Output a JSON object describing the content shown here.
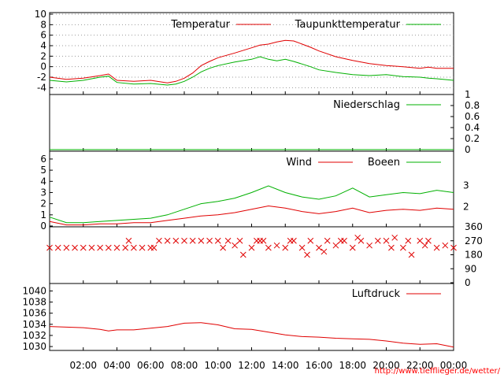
{
  "credit": "http://www.tiefflieger.de/wetter/",
  "x_ticks": [
    "02:00",
    "04:00",
    "06:00",
    "08:00",
    "10:00",
    "12:00",
    "14:00",
    "16:00",
    "18:00",
    "20:00",
    "22:00",
    "00:00"
  ],
  "chart_data": [
    {
      "id": "temperature",
      "type": "line",
      "x_unit": "hours since 00:00",
      "y_ticks": [
        10,
        8,
        6,
        4,
        2,
        0,
        -2,
        -4
      ],
      "y_range": [
        -5,
        10
      ],
      "grid": true,
      "legend_position": "top-right",
      "series": [
        {
          "name": "Temperatur",
          "color": "#e00000",
          "x": [
            0,
            1,
            2,
            3,
            3.5,
            4,
            5,
            6,
            7,
            7.5,
            8,
            8.5,
            9,
            9.5,
            10,
            11,
            12,
            12.5,
            13,
            13.5,
            14,
            14.5,
            15,
            15.5,
            16,
            17,
            18,
            19,
            20,
            21,
            22,
            22.5,
            23,
            24
          ],
          "y": [
            -2,
            -2.4,
            -2.2,
            -1.7,
            -1.4,
            -2.6,
            -2.8,
            -2.6,
            -3.1,
            -2.8,
            -2.2,
            -1.2,
            0.2,
            1,
            1.7,
            2.6,
            3.6,
            4.1,
            4.3,
            4.7,
            5,
            4.9,
            4.3,
            3.7,
            3,
            1.9,
            1.2,
            0.6,
            0.2,
            0,
            -0.3,
            -0.1,
            -0.3,
            -0.3
          ]
        },
        {
          "name": "Taupunkttemperatur",
          "color": "#00b000",
          "x": [
            0,
            1,
            2,
            3,
            3.5,
            4,
            5,
            6,
            7,
            7.5,
            8,
            8.5,
            9,
            9.5,
            10,
            11,
            12,
            12.5,
            13,
            13.5,
            14,
            14.5,
            15,
            15.5,
            16,
            17,
            18,
            19,
            20,
            21,
            22,
            22.5,
            23,
            24
          ],
          "y": [
            -2.6,
            -2.9,
            -2.6,
            -2,
            -1.8,
            -3,
            -3.3,
            -3.2,
            -3.5,
            -3.3,
            -2.8,
            -2,
            -1,
            -0.3,
            0.2,
            0.9,
            1.4,
            1.9,
            1.4,
            1.1,
            1.4,
            1,
            0.5,
            0,
            -0.6,
            -1.1,
            -1.5,
            -1.7,
            -1.5,
            -1.9,
            -2,
            -2.2,
            -2.3,
            -2.6
          ]
        }
      ]
    },
    {
      "id": "precipitation",
      "type": "line",
      "y_ticks": [
        1,
        0.8,
        0.6,
        0.4,
        0.2,
        0
      ],
      "y_range": [
        0,
        1
      ],
      "grid": false,
      "legend_position": "top-right",
      "series": [
        {
          "name": "Niederschlag",
          "color": "#00b000",
          "x": [
            0,
            24
          ],
          "y": [
            0,
            0
          ]
        }
      ]
    },
    {
      "id": "wind",
      "type": "line",
      "y_ticks": [
        6,
        5,
        4,
        3,
        2,
        1,
        0
      ],
      "y_range": [
        0,
        6.7
      ],
      "y2_ticks": [
        3,
        2
      ],
      "grid": false,
      "legend_position": "top-right",
      "series": [
        {
          "name": "Wind",
          "color": "#e00000",
          "x": [
            0,
            1,
            2,
            3,
            4,
            5,
            6,
            7,
            8,
            9,
            10,
            11,
            12,
            13,
            14,
            15,
            16,
            17,
            18,
            19,
            20,
            21,
            22,
            23,
            24
          ],
          "y": [
            0.4,
            0.1,
            0.1,
            0.2,
            0.2,
            0.3,
            0.3,
            0.5,
            0.7,
            0.9,
            1,
            1.2,
            1.5,
            1.8,
            1.6,
            1.3,
            1.1,
            1.3,
            1.6,
            1.2,
            1.4,
            1.5,
            1.4,
            1.6,
            1.5
          ]
        },
        {
          "name": "Boeen",
          "color": "#00b000",
          "x": [
            0,
            1,
            2,
            3,
            4,
            5,
            6,
            7,
            8,
            9,
            10,
            11,
            12,
            13,
            14,
            15,
            16,
            17,
            18,
            19,
            20,
            21,
            22,
            23,
            24
          ],
          "y": [
            0.8,
            0.3,
            0.3,
            0.4,
            0.5,
            0.6,
            0.7,
            1,
            1.5,
            2,
            2.2,
            2.5,
            3,
            3.6,
            3,
            2.6,
            2.4,
            2.7,
            3.4,
            2.6,
            2.8,
            3,
            2.9,
            3.2,
            3
          ]
        }
      ]
    },
    {
      "id": "wind_direction",
      "type": "scatter",
      "y_ticks": [
        360,
        270,
        180,
        90,
        0
      ],
      "y_range": [
        0,
        360
      ],
      "grid": false,
      "series": [
        {
          "name": "",
          "color": "#e00000",
          "x": [
            0,
            0.5,
            1,
            1.5,
            2,
            2.5,
            3,
            3.5,
            4,
            4.5,
            4.7,
            5,
            5.5,
            6,
            6.2,
            6.5,
            7,
            7.5,
            8,
            8.5,
            9,
            9.5,
            10,
            10.3,
            10.6,
            11,
            11.3,
            11.5,
            12,
            12.3,
            12.5,
            12.7,
            13,
            13.5,
            14,
            14.3,
            14.5,
            15,
            15.3,
            15.5,
            16,
            16.3,
            16.5,
            17,
            17.3,
            17.5,
            18,
            18.3,
            18.5,
            19,
            19.5,
            20,
            20.3,
            20.5,
            21,
            21.3,
            21.5,
            22,
            22.3,
            22.5,
            23,
            23.5,
            24
          ],
          "y": [
            225,
            225,
            225,
            225,
            225,
            225,
            225,
            225,
            225,
            225,
            270,
            225,
            225,
            225,
            225,
            270,
            270,
            270,
            270,
            270,
            270,
            270,
            270,
            225,
            270,
            240,
            270,
            180,
            225,
            270,
            270,
            270,
            225,
            240,
            225,
            270,
            270,
            225,
            180,
            270,
            225,
            200,
            270,
            240,
            270,
            270,
            225,
            290,
            270,
            240,
            270,
            270,
            225,
            290,
            225,
            270,
            180,
            270,
            240,
            270,
            225,
            240,
            225
          ]
        }
      ]
    },
    {
      "id": "pressure",
      "type": "line",
      "y_ticks": [
        1040,
        1038,
        1036,
        1034,
        1032,
        1030
      ],
      "y_range": [
        1029.3,
        1041.2
      ],
      "grid": false,
      "legend_position": "top-right",
      "series": [
        {
          "name": "Luftdruck",
          "color": "#e00000",
          "x": [
            0,
            1,
            2,
            3,
            3.5,
            4,
            5,
            6,
            7,
            8,
            9,
            10,
            11,
            12,
            13,
            14,
            15,
            16,
            17,
            18,
            19,
            20,
            21,
            22,
            23,
            24
          ],
          "y": [
            1033.6,
            1033.5,
            1033.4,
            1033.1,
            1032.8,
            1033.0,
            1033.0,
            1033.3,
            1033.6,
            1034.2,
            1034.3,
            1033.9,
            1033.2,
            1033.1,
            1032.6,
            1032.1,
            1031.8,
            1031.7,
            1031.5,
            1031.4,
            1031.3,
            1031.0,
            1030.6,
            1030.4,
            1030.5,
            1029.9
          ]
        }
      ]
    }
  ]
}
